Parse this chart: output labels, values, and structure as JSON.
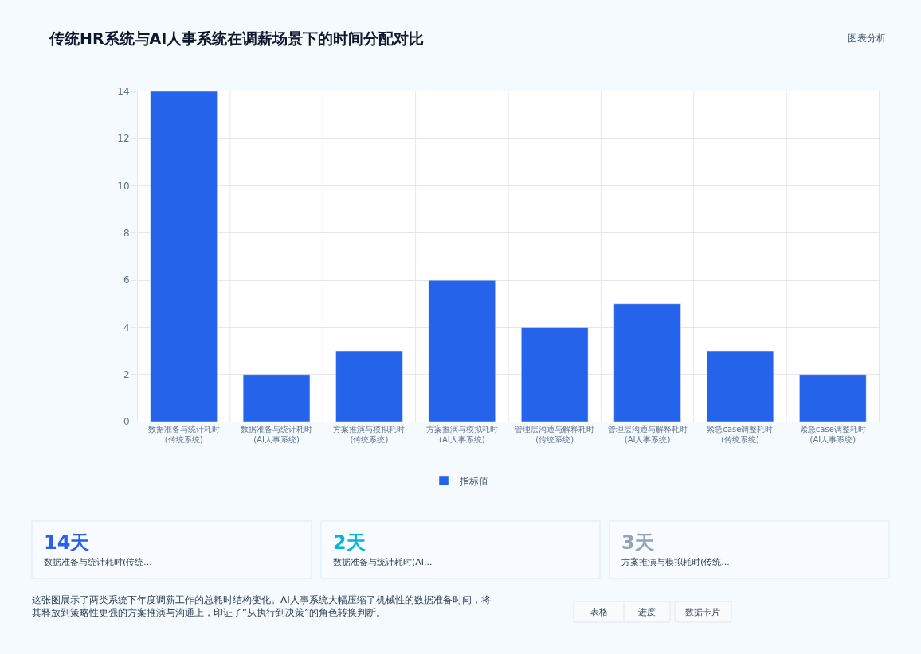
{
  "chart_data": {
    "type": "bar",
    "title": "传统HR系统与AI人事系统在调薪场景下的时间分配对比",
    "categories": [
      "数据准备与统计耗时(传统系统)",
      "数据准备与统计耗时(AI人事系统)",
      "方案推演与模拟耗时(传统系统)",
      "方案推演与模拟耗时(AI人事系统)",
      "管理层沟通与解释耗时(传统系统)",
      "管理层沟通与解释耗时(AI人事系统)",
      "紧急case调整耗时(传统系统)",
      "紧急case调整耗时(AI人事系统)"
    ],
    "series": [
      {
        "name": "指标值",
        "color": "#2563eb",
        "values": [
          14,
          2,
          3,
          6,
          4,
          5,
          3,
          2
        ]
      }
    ],
    "ylim": [
      0,
      14
    ],
    "yticks": [
      0,
      2,
      4,
      6,
      8,
      10,
      12,
      14
    ],
    "grid": true,
    "legend": "bottom",
    "annotations": [
      "图表分析",
      "14天",
      "数据准备与统计耗时(传统...",
      "2天",
      "数据准备与统计耗时(AI...",
      "3天",
      "方案推演与模拟耗时(传统...",
      "这张图展示了两类系统下年度调薪工作的总耗时结构变化。AI人事系统大幅压缩了机械性的数据准备时间，将其释放到策略性更强的方案推演与沟通上，印证了“从执行到决策”的角色转换判断。",
      "表格",
      "进度",
      "数据卡片"
    ]
  }
}
